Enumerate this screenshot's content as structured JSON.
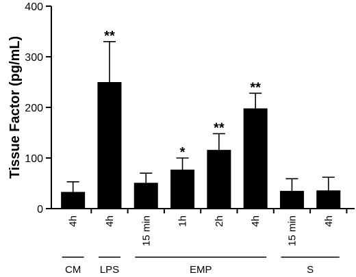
{
  "chart_data": {
    "type": "bar",
    "ylabel": "Tissue Factor (pg/mL)",
    "ylim": [
      0,
      400
    ],
    "yticks": [
      0,
      100,
      200,
      300,
      400
    ],
    "categories": [
      "4h",
      "4h",
      "15 min",
      "1h",
      "2h",
      "4h",
      "15 min",
      "4h"
    ],
    "values": [
      33,
      250,
      51,
      77,
      116,
      198,
      35,
      36
    ],
    "errors": [
      20,
      80,
      19,
      23,
      32,
      30,
      24,
      26
    ],
    "significance": [
      "",
      "**",
      "",
      "*",
      "**",
      "**",
      "",
      ""
    ],
    "groups": [
      {
        "label": "CM",
        "members": [
          0
        ]
      },
      {
        "label": "LPS",
        "members": [
          1
        ]
      },
      {
        "label": "EMP",
        "members": [
          2,
          3,
          4,
          5
        ]
      },
      {
        "label": "S",
        "members": [
          6,
          7
        ]
      }
    ],
    "grid": false,
    "legend": "none",
    "bar_color": "#000000"
  }
}
